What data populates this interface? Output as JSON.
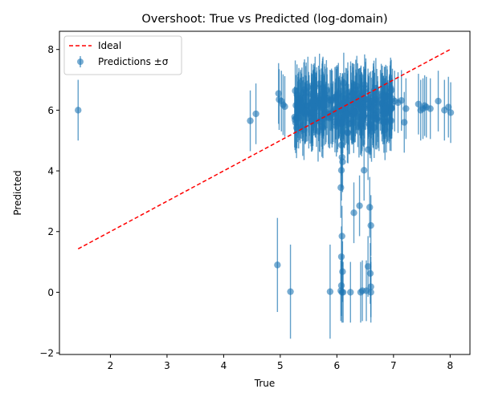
{
  "chart_data": {
    "type": "scatter",
    "title": "Overshoot: True vs Predicted (log-domain)",
    "xlabel": "True",
    "ylabel": "Predicted",
    "xlim": [
      1.1,
      8.35
    ],
    "ylim": [
      -2.05,
      8.6
    ],
    "xticks": [
      2,
      3,
      4,
      5,
      6,
      7,
      8
    ],
    "yticks": [
      -2,
      0,
      2,
      4,
      6,
      8
    ],
    "grid": false,
    "legend": {
      "position": "top-left",
      "entries": [
        "Ideal",
        "Predictions ±σ"
      ]
    },
    "colors": {
      "ideal": "#ff0000",
      "points": "#1f77b4"
    },
    "series": [
      {
        "name": "Ideal",
        "kind": "line",
        "style": "dashed",
        "x": [
          1.43,
          8.0
        ],
        "y": [
          1.43,
          8.0
        ]
      },
      {
        "name": "Predictions ±σ",
        "kind": "errorbar",
        "sigma_default": 1.0,
        "sigma_large": 1.55,
        "points": [
          [
            1.43,
            6.0,
            1.0
          ],
          [
            4.47,
            5.65,
            1.0
          ],
          [
            4.57,
            5.88,
            1.0
          ],
          [
            4.97,
            6.55,
            1.0
          ],
          [
            4.98,
            6.35,
            1.0
          ],
          [
            5.02,
            6.3,
            1.0
          ],
          [
            5.05,
            6.18,
            1.0
          ],
          [
            5.08,
            6.12,
            1.0
          ],
          [
            7.02,
            6.3,
            1.0
          ],
          [
            7.08,
            6.25,
            1.0
          ],
          [
            7.14,
            6.32,
            1.0
          ],
          [
            7.19,
            5.6,
            1.0
          ],
          [
            7.22,
            6.05,
            1.0
          ],
          [
            7.44,
            6.2,
            1.0
          ],
          [
            7.48,
            6.0,
            1.0
          ],
          [
            7.52,
            6.05,
            1.0
          ],
          [
            7.55,
            6.15,
            1.0
          ],
          [
            7.58,
            6.1,
            1.0
          ],
          [
            7.65,
            6.05,
            1.0
          ],
          [
            7.79,
            6.3,
            1.0
          ],
          [
            7.9,
            6.0,
            1.0
          ],
          [
            7.97,
            6.1,
            1.0
          ],
          [
            8.01,
            5.92,
            1.0
          ],
          [
            6.08,
            4.85,
            1.0
          ],
          [
            6.09,
            4.45,
            1.0
          ],
          [
            6.1,
            4.3,
            1.0
          ],
          [
            6.08,
            4.02,
            1.0
          ],
          [
            6.07,
            3.45,
            1.0
          ],
          [
            6.09,
            1.85,
            1.0
          ],
          [
            6.08,
            1.17,
            1.0
          ],
          [
            6.1,
            0.68,
            1.0
          ],
          [
            6.08,
            0.22,
            1.0
          ],
          [
            6.07,
            0.05,
            1.0
          ],
          [
            6.09,
            0.0,
            1.0
          ],
          [
            6.11,
            0.0,
            1.0
          ],
          [
            6.48,
            4.02,
            1.0
          ],
          [
            6.55,
            4.7,
            1.0
          ],
          [
            6.58,
            2.8,
            1.0
          ],
          [
            6.6,
            2.2,
            1.0
          ],
          [
            6.55,
            0.85,
            1.0
          ],
          [
            6.59,
            0.62,
            1.0
          ],
          [
            6.6,
            0.18,
            1.0
          ],
          [
            6.6,
            0.0,
            1.0
          ],
          [
            6.52,
            0.05,
            1.0
          ],
          [
            6.3,
            2.62,
            1.0
          ],
          [
            6.4,
            2.85,
            1.0
          ],
          [
            6.24,
            0.0,
            1.0
          ],
          [
            6.42,
            0.0,
            1.0
          ],
          [
            6.45,
            0.05,
            1.0
          ],
          [
            4.95,
            0.9,
            1.55
          ],
          [
            5.18,
            0.02,
            1.55
          ],
          [
            5.88,
            0.02,
            1.55
          ]
        ],
        "dense_cluster": {
          "x_range": [
            5.25,
            7.0
          ],
          "y_center": 6.1,
          "y_spread": 0.55,
          "sigma": 1.0,
          "count": 320
        }
      }
    ]
  }
}
